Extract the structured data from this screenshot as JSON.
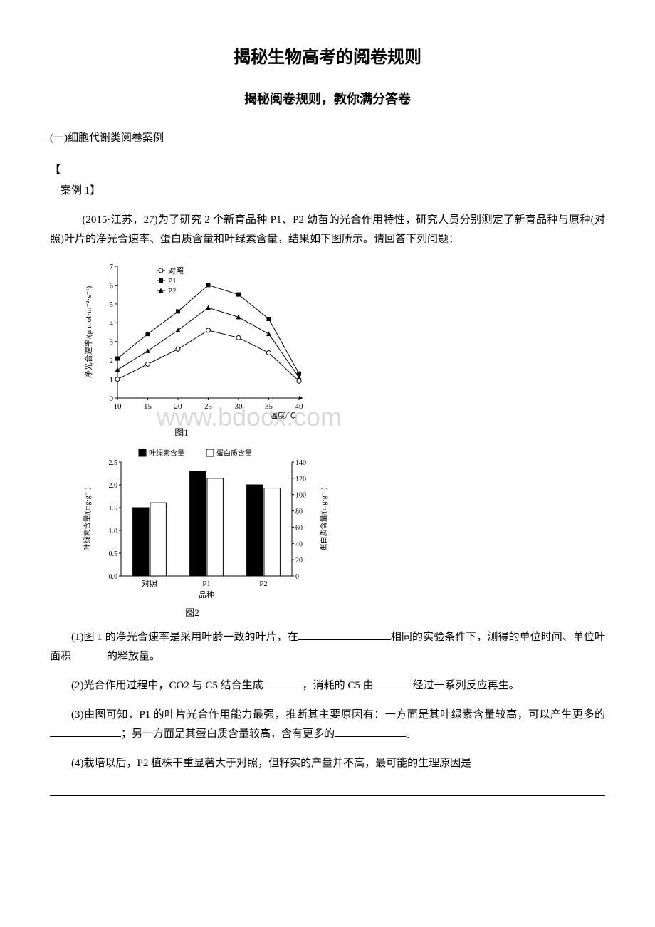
{
  "title": "揭秘生物高考的阅卷规则",
  "subtitle": "揭秘阅卷规则，教你满分答卷",
  "section_heading": "(一)细胞代谢类阅卷案例",
  "case_bracket": "【",
  "case_label": "案例 1】",
  "intro_para": "　(2015·江苏，27)为了研究 2 个新育品种 P1、P2 幼苗的光合作用特性，研究人员分别测定了新育品种与原种(对照)叶片的净光合速率、蛋白质含量和叶绿素含量，结果如下图所示。请回答下列问题：",
  "watermark_text": "www.bdocx.com",
  "line_chart": {
    "type": "line",
    "x_values": [
      10,
      15,
      20,
      25,
      30,
      35,
      40
    ],
    "xlim": [
      10,
      40
    ],
    "ylim": [
      0,
      7
    ],
    "ytick_step": 1,
    "ylabel": "净光合速率/(μ mol·m⁻²·s⁻¹)",
    "xlabel": "温度/℃",
    "legend": [
      "对照",
      "P1",
      "P2"
    ],
    "markers": [
      "circle-open",
      "square-filled",
      "triangle-filled"
    ],
    "series_colors": [
      "#000000",
      "#000000",
      "#000000"
    ],
    "series_data": {
      "control": [
        1.0,
        1.8,
        2.6,
        3.6,
        3.2,
        2.4,
        0.9
      ],
      "p1": [
        2.1,
        3.4,
        4.6,
        6.0,
        5.5,
        4.2,
        1.3
      ],
      "p2": [
        1.5,
        2.5,
        3.6,
        4.8,
        4.3,
        3.4,
        1.1
      ]
    },
    "background": "#ffffff",
    "axis_color": "#000000",
    "caption": "图1"
  },
  "bar_chart": {
    "type": "grouped-bar-dual-axis",
    "categories": [
      "对照",
      "P1",
      "P2"
    ],
    "xlabel": "品种",
    "ylabel_left": "叶绿素含量/(mg·g⁻¹)",
    "ylabel_right": "蛋白质含量/(mg·g⁻¹)",
    "left_ylim": [
      0,
      2.5
    ],
    "left_ytick_step": 0.5,
    "right_ylim": [
      0,
      140
    ],
    "right_ytick_step": 20,
    "legend": [
      "叶绿素含量",
      "蛋白质含量"
    ],
    "bar_colors": [
      "#000000",
      "#ffffff"
    ],
    "chlorophyll": [
      1.5,
      2.3,
      2.0
    ],
    "protein": [
      90,
      120,
      108
    ],
    "background": "#ffffff",
    "axis_color": "#000000",
    "caption": "图2"
  },
  "q1_pre": "(1)图 1 的净光合速率是采用叶龄一致的叶片，在",
  "q1_mid": "相同的实验条件下，测得的单位时间、单位叶面积",
  "q1_end": "的释放量。",
  "q2_pre": "(2)光合作用过程中，CO2 与 C5 结合生成",
  "q2_mid": "，消耗的 C5 由",
  "q2_end": "经过一系列反应再生。",
  "q3_pre": "(3)由图可知，P1 的叶片光合作用能力最强，推断其主要原因有：一方面是其叶绿素含量较高，可以产生更多的",
  "q3_mid": "；另一方面是其蛋白质含量较高，含有更多的",
  "q3_end": "。",
  "q4": "(4)栽培以后，P2 植株干重显著大于对照，但籽实的产量并不高，最可能的生理原因是"
}
